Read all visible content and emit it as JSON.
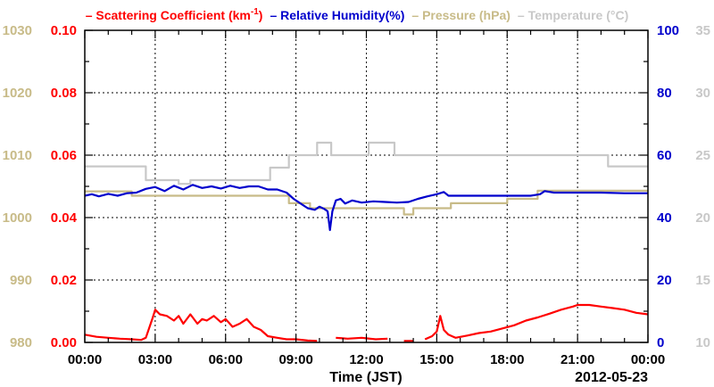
{
  "chart_data": {
    "type": "line",
    "legend": [
      {
        "dash": "–",
        "label": "Scattering Coefficient (km",
        "sup": "-1",
        "after": ")",
        "color": "#ff0000"
      },
      {
        "dash": "–",
        "label": "Relative Humidity(%)",
        "color": "#0000cc"
      },
      {
        "dash": "–",
        "label": "Pressure (hPa)",
        "color": "#c8bb88"
      },
      {
        "dash": "–",
        "label": "Temperature (°C)",
        "color": "#c8c8c8"
      }
    ],
    "xlabel": "Time (JST)",
    "date_label": "2012-05-23",
    "x_ticks": [
      "00:00",
      "03:00",
      "06:00",
      "09:00",
      "12:00",
      "15:00",
      "18:00",
      "21:00",
      "00:00"
    ],
    "xlim": [
      0,
      24
    ],
    "axes": {
      "scattering": {
        "side": "left-inner",
        "color": "#ff0000",
        "ylim": [
          0.0,
          0.1
        ],
        "ticks": [
          "0.00",
          "0.02",
          "0.04",
          "0.06",
          "0.08",
          "0.10"
        ]
      },
      "pressure": {
        "side": "left-outer",
        "color": "#c8bb88",
        "ylim": [
          980,
          1030
        ],
        "ticks": [
          "980",
          "990",
          "1000",
          "1010",
          "1020",
          "1030"
        ]
      },
      "humidity": {
        "side": "right-inner",
        "color": "#0000cc",
        "ylim": [
          0,
          100
        ],
        "ticks": [
          "0",
          "20",
          "40",
          "60",
          "80",
          "100"
        ]
      },
      "temperature": {
        "side": "right-outer",
        "color": "#c8c8c8",
        "ylim": [
          10,
          35
        ],
        "ticks": [
          "10",
          "15",
          "20",
          "25",
          "30",
          "35"
        ]
      }
    },
    "grid": true,
    "series": [
      {
        "key": "temperature",
        "color": "#c8c8c8",
        "values": [
          [
            0,
            24.1
          ],
          [
            2.6,
            24.1
          ],
          [
            2.6,
            23.0
          ],
          [
            4.0,
            23.0
          ],
          [
            4.0,
            22.7
          ],
          [
            4.5,
            22.7
          ],
          [
            4.5,
            23.0
          ],
          [
            7.9,
            23.0
          ],
          [
            7.9,
            24.0
          ],
          [
            8.7,
            24.0
          ],
          [
            8.7,
            25.0
          ],
          [
            9.9,
            25.0
          ],
          [
            9.9,
            26.0
          ],
          [
            10.5,
            26.0
          ],
          [
            10.5,
            25.0
          ],
          [
            12.1,
            25.0
          ],
          [
            12.1,
            26.0
          ],
          [
            13.2,
            26.0
          ],
          [
            13.2,
            25.0
          ],
          [
            22.3,
            25.0
          ],
          [
            22.3,
            24.1
          ],
          [
            24,
            24.1
          ]
        ]
      },
      {
        "key": "pressure",
        "color": "#c8bb88",
        "values": [
          [
            0,
            1004.2
          ],
          [
            2.0,
            1004.2
          ],
          [
            2.0,
            1003.5
          ],
          [
            8.7,
            1003.5
          ],
          [
            8.7,
            1002.3
          ],
          [
            9.6,
            1002.3
          ],
          [
            9.6,
            1001.5
          ],
          [
            13.6,
            1001.5
          ],
          [
            13.6,
            1000.5
          ],
          [
            14.0,
            1000.5
          ],
          [
            14.0,
            1001.5
          ],
          [
            15.6,
            1001.5
          ],
          [
            15.6,
            1002.3
          ],
          [
            18.0,
            1002.3
          ],
          [
            18.0,
            1003.0
          ],
          [
            19.3,
            1003.0
          ],
          [
            19.3,
            1004.3
          ],
          [
            24,
            1004.3
          ]
        ]
      },
      {
        "key": "humidity",
        "color": "#0000cc",
        "values": [
          [
            0,
            47.0
          ],
          [
            0.3,
            47.5
          ],
          [
            0.6,
            46.8
          ],
          [
            1.0,
            47.6
          ],
          [
            1.4,
            47.0
          ],
          [
            1.8,
            47.8
          ],
          [
            2.2,
            48.0
          ],
          [
            2.6,
            49.2
          ],
          [
            3.0,
            49.8
          ],
          [
            3.4,
            48.5
          ],
          [
            3.8,
            50.2
          ],
          [
            4.2,
            49.0
          ],
          [
            4.6,
            50.5
          ],
          [
            5.0,
            49.5
          ],
          [
            5.4,
            50.0
          ],
          [
            5.8,
            49.3
          ],
          [
            6.2,
            50.2
          ],
          [
            6.6,
            49.5
          ],
          [
            7.0,
            50.0
          ],
          [
            7.4,
            50.0
          ],
          [
            7.8,
            49.0
          ],
          [
            8.2,
            49.0
          ],
          [
            8.6,
            48.0
          ],
          [
            8.9,
            46.0
          ],
          [
            9.2,
            44.5
          ],
          [
            9.5,
            43.0
          ],
          [
            9.8,
            42.5
          ],
          [
            10.0,
            43.5
          ],
          [
            10.2,
            42.8
          ],
          [
            10.35,
            42.0
          ],
          [
            10.45,
            36.0
          ],
          [
            10.55,
            42.0
          ],
          [
            10.7,
            45.5
          ],
          [
            10.9,
            46.0
          ],
          [
            11.1,
            44.5
          ],
          [
            11.4,
            45.5
          ],
          [
            11.8,
            44.8
          ],
          [
            12.3,
            45.2
          ],
          [
            12.8,
            45.0
          ],
          [
            13.3,
            44.8
          ],
          [
            13.8,
            45.0
          ],
          [
            14.2,
            46.0
          ],
          [
            14.6,
            46.8
          ],
          [
            15.0,
            47.5
          ],
          [
            15.3,
            48.2
          ],
          [
            15.5,
            47.0
          ],
          [
            16.0,
            47.0
          ],
          [
            17.0,
            47.0
          ],
          [
            18.0,
            47.0
          ],
          [
            19.0,
            47.0
          ],
          [
            19.4,
            47.5
          ],
          [
            19.6,
            48.5
          ],
          [
            20.0,
            48.0
          ],
          [
            21.0,
            48.0
          ],
          [
            22.0,
            48.0
          ],
          [
            23.0,
            47.8
          ],
          [
            24.0,
            47.8
          ]
        ]
      },
      {
        "key": "scattering",
        "color": "#ff0000",
        "values": [
          [
            0,
            0.0025
          ],
          [
            0.5,
            0.0018
          ],
          [
            1.0,
            0.0015
          ],
          [
            1.5,
            0.0012
          ],
          [
            2.0,
            0.001
          ],
          [
            2.4,
            0.0008
          ],
          [
            2.6,
            0.0015
          ],
          [
            2.9,
            0.008
          ],
          [
            3.0,
            0.0105
          ],
          [
            3.2,
            0.009
          ],
          [
            3.5,
            0.0085
          ],
          [
            3.8,
            0.007
          ],
          [
            4.0,
            0.0085
          ],
          [
            4.2,
            0.006
          ],
          [
            4.5,
            0.009
          ],
          [
            4.8,
            0.006
          ],
          [
            5.0,
            0.0075
          ],
          [
            5.2,
            0.007
          ],
          [
            5.5,
            0.0085
          ],
          [
            5.8,
            0.0065
          ],
          [
            6.0,
            0.0075
          ],
          [
            6.3,
            0.005
          ],
          [
            6.6,
            0.006
          ],
          [
            6.9,
            0.0075
          ],
          [
            7.2,
            0.005
          ],
          [
            7.5,
            0.004
          ],
          [
            7.8,
            0.002
          ],
          [
            8.2,
            0.0015
          ],
          [
            8.6,
            0.001
          ],
          [
            9.0,
            0.001
          ],
          [
            9.5,
            0.0006
          ],
          [
            9.9,
            0.0005
          ],
          [
            10.0,
            null
          ],
          [
            10.7,
            0.0015
          ],
          [
            11.2,
            0.0012
          ],
          [
            11.8,
            0.0015
          ],
          [
            12.4,
            0.001
          ],
          [
            12.9,
            0.0012
          ],
          [
            13.0,
            null
          ],
          [
            13.6,
            0.0005
          ],
          [
            14.0,
            0.0005
          ],
          [
            14.2,
            null
          ],
          [
            14.5,
            0.001
          ],
          [
            14.8,
            0.002
          ],
          [
            15.0,
            0.0035
          ],
          [
            15.15,
            0.0085
          ],
          [
            15.3,
            0.004
          ],
          [
            15.5,
            0.0025
          ],
          [
            15.8,
            0.0015
          ],
          [
            16.3,
            0.0022
          ],
          [
            16.8,
            0.003
          ],
          [
            17.3,
            0.0035
          ],
          [
            17.8,
            0.0045
          ],
          [
            18.3,
            0.0055
          ],
          [
            18.8,
            0.007
          ],
          [
            19.3,
            0.008
          ],
          [
            19.8,
            0.0092
          ],
          [
            20.3,
            0.0105
          ],
          [
            20.8,
            0.0115
          ],
          [
            21.0,
            0.012
          ],
          [
            21.5,
            0.012
          ],
          [
            22.0,
            0.0115
          ],
          [
            22.5,
            0.011
          ],
          [
            23.0,
            0.0105
          ],
          [
            23.5,
            0.0095
          ],
          [
            24.0,
            0.009
          ]
        ]
      }
    ]
  }
}
